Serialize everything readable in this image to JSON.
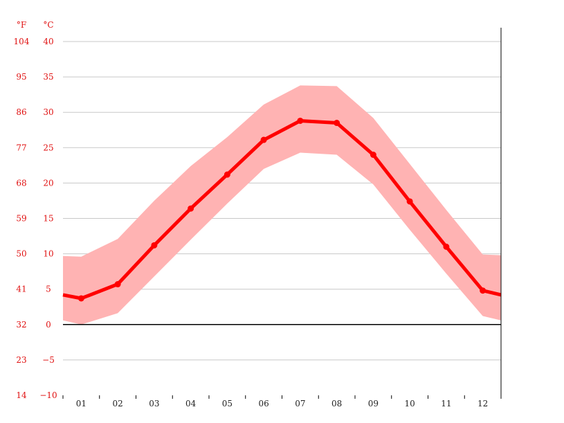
{
  "chart_data": {
    "type": "line",
    "title": "",
    "xlabel": "",
    "ylabel": "",
    "unit_left": "°F",
    "unit_right": "°C",
    "categories": [
      "01",
      "02",
      "03",
      "04",
      "05",
      "06",
      "07",
      "08",
      "09",
      "10",
      "11",
      "12"
    ],
    "ylim": [
      -10,
      40
    ],
    "yticks_c": [
      "40",
      "35",
      "30",
      "25",
      "20",
      "15",
      "10",
      "5",
      "0",
      "−5",
      "−10"
    ],
    "yticks_f": [
      "104",
      "95",
      "86",
      "77",
      "68",
      "59",
      "50",
      "41",
      "32",
      "23",
      "14"
    ],
    "series": [
      {
        "values": [
          3.7,
          5.7,
          11.2,
          16.4,
          21.2,
          26.1,
          28.8,
          28.5,
          24.0,
          17.4,
          11.0,
          4.8
        ]
      }
    ],
    "band": {
      "max": [
        9.6,
        12.1,
        17.5,
        22.4,
        26.5,
        31.1,
        33.8,
        33.7,
        29.2,
        22.7,
        16.2,
        9.9
      ],
      "min": [
        0.0,
        1.6,
        6.8,
        12.0,
        17.1,
        22.0,
        24.3,
        24.0,
        19.8,
        13.4,
        7.2,
        1.2
      ]
    },
    "edge": {
      "line": [
        4.2,
        4.2
      ],
      "max": [
        9.7,
        9.8
      ],
      "min": [
        0.6,
        0.6
      ]
    },
    "grid": true,
    "colors": {
      "line": "#ff0000",
      "band": "#ffb3b3",
      "tick": "#e01010",
      "grid": "#c8c8c8"
    }
  }
}
